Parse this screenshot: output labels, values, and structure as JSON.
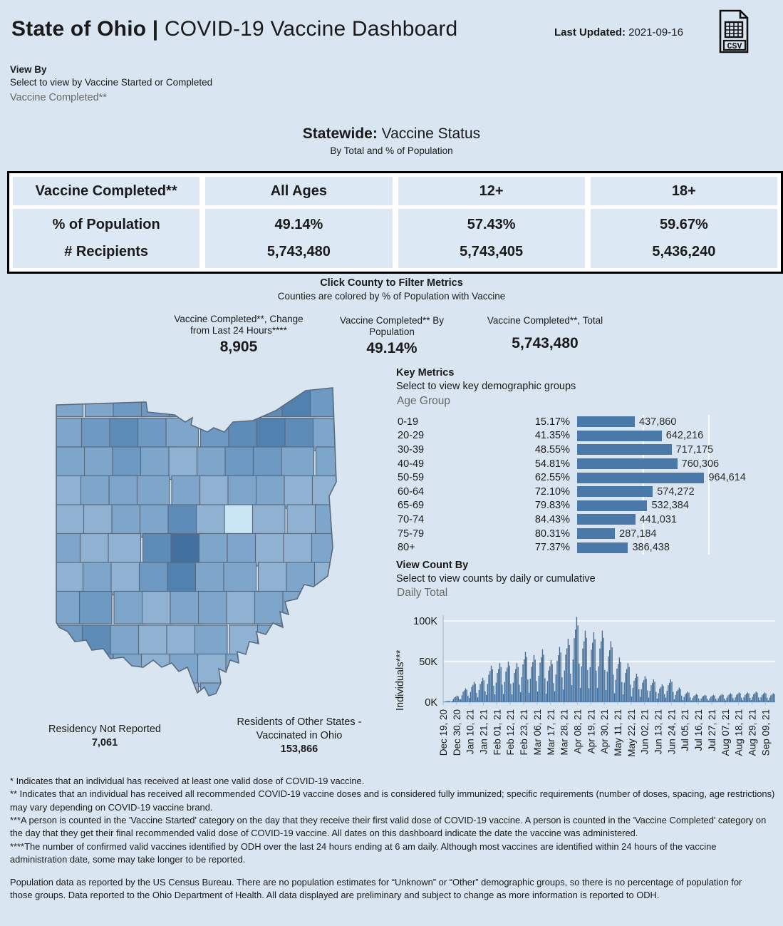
{
  "header": {
    "title_bold": "State of Ohio |",
    "title_rest": " COVID-19 Vaccine Dashboard",
    "last_updated_label": "Last Updated:",
    "last_updated_value": " 2021-09-16",
    "csv_label": "CSV"
  },
  "view_by": {
    "label": "View By",
    "hint": "Select to view by Vaccine Started or Completed",
    "value": "Vaccine Completed**"
  },
  "statewide": {
    "title_bold": "Statewide:",
    "title_rest": " Vaccine Status",
    "subtitle": "By Total and % of Population",
    "table": {
      "row_header": "Vaccine Completed**",
      "col_headers": [
        "All Ages",
        "12+",
        "18+"
      ],
      "row_labels": [
        "% of Population",
        "# Recipients"
      ],
      "columns": [
        [
          "49.14%",
          "5,743,480"
        ],
        [
          "57.43%",
          "5,743,405"
        ],
        [
          "59.67%",
          "5,436,240"
        ]
      ]
    }
  },
  "county_filter": {
    "title": "Click County to Filter Metrics",
    "subtitle": "Counties are colored by % of Population with Vaccine"
  },
  "metrics": [
    {
      "label": "Vaccine Completed**, Change from Last 24 Hours****",
      "value": "8,905"
    },
    {
      "label": "Vaccine Completed** By Population",
      "value": "49.14%"
    },
    {
      "label": "Vaccine Completed**, Total",
      "value": "5,743,480"
    }
  ],
  "key_metrics_panel": {
    "title": "Key Metrics",
    "hint": "Select to view key demographic groups",
    "selector": "Age Group"
  },
  "view_count_panel": {
    "title": "View Count By",
    "hint": "Select to view counts by daily or cumulative",
    "selector": "Daily Total"
  },
  "map_notes": {
    "note_1_label": "Residency Not Reported",
    "note_1_value": "7,061",
    "note_2_label": "Residents of Other States - Vaccinated in Ohio",
    "note_2_value": "153,866"
  },
  "map": {
    "border_color": "#5b6b7d",
    "palette": [
      "#c9e4f2",
      "#a9c8e2",
      "#9bbcda",
      "#8fb2d3",
      "#7da6ca",
      "#6d99c2",
      "#5d8cb8",
      "#5181af",
      "#42719f",
      "#3a6694"
    ],
    "grid": [
      [
        4,
        4,
        5,
        5,
        5,
        5,
        5,
        6,
        7,
        5
      ],
      [
        4,
        5,
        6,
        5,
        4,
        5,
        6,
        7,
        6,
        4
      ],
      [
        4,
        4,
        5,
        4,
        3,
        4,
        5,
        5,
        4,
        4
      ],
      [
        3,
        4,
        4,
        4,
        4,
        3,
        4,
        4,
        3,
        3
      ],
      [
        3,
        3,
        4,
        4,
        6,
        3,
        0,
        3,
        3,
        4
      ],
      [
        4,
        3,
        3,
        6,
        8,
        4,
        4,
        3,
        3,
        4
      ],
      [
        3,
        4,
        3,
        5,
        7,
        4,
        4,
        3,
        4,
        3
      ],
      [
        4,
        5,
        4,
        3,
        4,
        4,
        3,
        4,
        4,
        3
      ],
      [
        5,
        6,
        4,
        3,
        3,
        4,
        3,
        4,
        3,
        3
      ],
      [
        5,
        5,
        4,
        3,
        4,
        3,
        4,
        3,
        3,
        3
      ],
      [
        6,
        4,
        3,
        4,
        3,
        4,
        3,
        3,
        3,
        3
      ]
    ]
  },
  "chart_data": [
    {
      "type": "bar",
      "orientation": "horizontal",
      "title": "Key Metrics — Age Group",
      "categories": [
        "0-19",
        "20-29",
        "30-39",
        "40-49",
        "50-59",
        "60-64",
        "65-69",
        "70-74",
        "75-79",
        "80+"
      ],
      "series": [
        {
          "name": "% of Population",
          "values": [
            15.17,
            41.35,
            48.55,
            54.81,
            62.55,
            72.1,
            79.83,
            84.43,
            80.31,
            77.37
          ]
        },
        {
          "name": "Individuals",
          "values": [
            437860,
            642216,
            717175,
            760306,
            964614,
            574272,
            532384,
            441031,
            287184,
            386438
          ]
        }
      ],
      "pct_labels": [
        "15.17%",
        "41.35%",
        "48.55%",
        "54.81%",
        "62.55%",
        "72.10%",
        "79.83%",
        "84.43%",
        "80.31%",
        "77.37%"
      ],
      "value_labels": [
        "437,860",
        "642,216",
        "717,175",
        "760,306",
        "964,614",
        "574,272",
        "532,384",
        "441,031",
        "287,184",
        "386,438"
      ],
      "xlim": [
        0,
        1000000
      ],
      "gridlines": [
        500000,
        1000000
      ],
      "bar_color": "#4a78a8"
    },
    {
      "type": "bar",
      "title": "Daily Total",
      "ylabel": "Individuals***",
      "ytick_labels": [
        "0K",
        "50K",
        "100K"
      ],
      "yticks": [
        0,
        50000,
        100000
      ],
      "ylim": [
        0,
        105000
      ],
      "x_tick_labels": [
        "Dec 19, 20",
        "Dec 30, 20",
        "Jan 10, 21",
        "Jan 21, 21",
        "Feb 01, 21",
        "Feb 12, 21",
        "Feb 23, 21",
        "Mar 06, 21",
        "Mar 17, 21",
        "Mar 28, 21",
        "Apr 08, 21",
        "Apr 19, 21",
        "Apr 30, 21",
        "May 11, 21",
        "May 22, 21",
        "Jun 02, 21",
        "Jun 13, 21",
        "Jun 24, 21",
        "Jul 05, 21",
        "Jul 16, 21",
        "Jul 27, 21",
        "Aug 07, 21",
        "Aug 18, 21",
        "Aug 29, 21",
        "Sep 09, 21"
      ],
      "x_tick_interval_days": 11,
      "bar_color": "#3f6f9f",
      "values": [
        300,
        750,
        1100,
        1300,
        1500,
        1350,
        700,
        1600,
        4000,
        6000,
        6800,
        8000,
        7200,
        3600,
        3400,
        8500,
        12800,
        14500,
        17000,
        15300,
        7700,
        5000,
        12500,
        18800,
        21300,
        25000,
        22500,
        11300,
        6000,
        15000,
        22500,
        25500,
        30000,
        27000,
        13500,
        9000,
        22500,
        33800,
        38300,
        45000,
        40500,
        20300,
        9600,
        24000,
        36000,
        40800,
        48000,
        43200,
        21600,
        10000,
        25000,
        37500,
        42500,
        50000,
        45000,
        22500,
        9600,
        24000,
        36000,
        40800,
        48000,
        43200,
        21600,
        12400,
        31000,
        46500,
        52700,
        62000,
        55800,
        27900,
        11600,
        29000,
        43500,
        49300,
        58000,
        52200,
        26100,
        13000,
        32500,
        48800,
        55300,
        65000,
        58500,
        29300,
        10400,
        26000,
        39000,
        44200,
        52000,
        46800,
        23400,
        13600,
        34000,
        51000,
        57800,
        68000,
        61200,
        30600,
        15600,
        39000,
        58500,
        66300,
        78000,
        70200,
        35100,
        21000,
        52500,
        78800,
        89300,
        105000,
        94500,
        47300,
        17600,
        44000,
        66000,
        74800,
        88000,
        79200,
        39600,
        17200,
        43000,
        64500,
        73100,
        86000,
        77400,
        38700,
        17600,
        44000,
        66000,
        74800,
        88000,
        79200,
        39600,
        15000,
        37500,
        56300,
        63800,
        75000,
        67500,
        33800,
        11000,
        27500,
        41300,
        46800,
        55000,
        49500,
        24800,
        9600,
        24000,
        36000,
        40800,
        48000,
        43200,
        21600,
        7000,
        17500,
        26300,
        29800,
        35000,
        31500,
        15800,
        6400,
        16000,
        24000,
        27200,
        32000,
        28800,
        14400,
        5600,
        14000,
        21000,
        23800,
        28000,
        25200,
        12600,
        4400,
        11000,
        16500,
        18700,
        22000,
        19800,
        9900,
        5600,
        14000,
        21000,
        23800,
        28000,
        25200,
        12600,
        3600,
        9000,
        13500,
        15300,
        18000,
        16200,
        8100,
        2600,
        6500,
        9800,
        11100,
        13000,
        11700,
        5900,
        2000,
        5000,
        7500,
        8500,
        10000,
        9000,
        4500,
        1800,
        4500,
        6800,
        7700,
        9000,
        8100,
        4100,
        1800,
        4500,
        6800,
        7700,
        9000,
        8100,
        4100,
        2000,
        5000,
        7500,
        8500,
        10000,
        9000,
        4500,
        2200,
        5500,
        8300,
        9400,
        11000,
        9900,
        5000,
        2400,
        6000,
        9000,
        10200,
        12000,
        10800,
        5400,
        2400,
        6000,
        9000,
        10200,
        12000,
        10800,
        5400,
        2600,
        6500,
        9800,
        11100,
        13000,
        11700,
        5900,
        2400,
        6000,
        9000,
        10200,
        12000,
        10800,
        5400,
        2200,
        5500,
        8300,
        9400,
        11000,
        9900
      ]
    }
  ],
  "footnotes": [
    "* Indicates that an individual has received at least one valid dose of COVID-19 vaccine.",
    "** Indicates that an individual has received all recommended COVID-19 vaccine doses and is considered fully immunized; specific requirements (number of doses, spacing, age restrictions) may vary depending on COVID-19 vaccine brand.",
    "***A person is counted in the 'Vaccine Started' category on the day that they receive their first valid dose of COVID-19 vaccine.  A person is counted in the 'Vaccine Completed' category on the day that they get their final recommended valid dose of COVID-19 vaccine. All dates on this dashboard indicate the date the vaccine was administered.",
    "****The number of confirmed valid vaccines identified by ODH over the last 24 hours ending at 6 am daily. Although most vaccines are identified within 24 hours of the vaccine administration date, some may take longer to be reported."
  ],
  "population_note": "Population data as reported by the US Census Bureau. There are no population estimates for “Unknown” or “Other” demographic groups, so there is no percentage of population for those groups.  Data reported to the Ohio Department of Health.  All data displayed are preliminary and subject to change as more information is reported to ODH."
}
